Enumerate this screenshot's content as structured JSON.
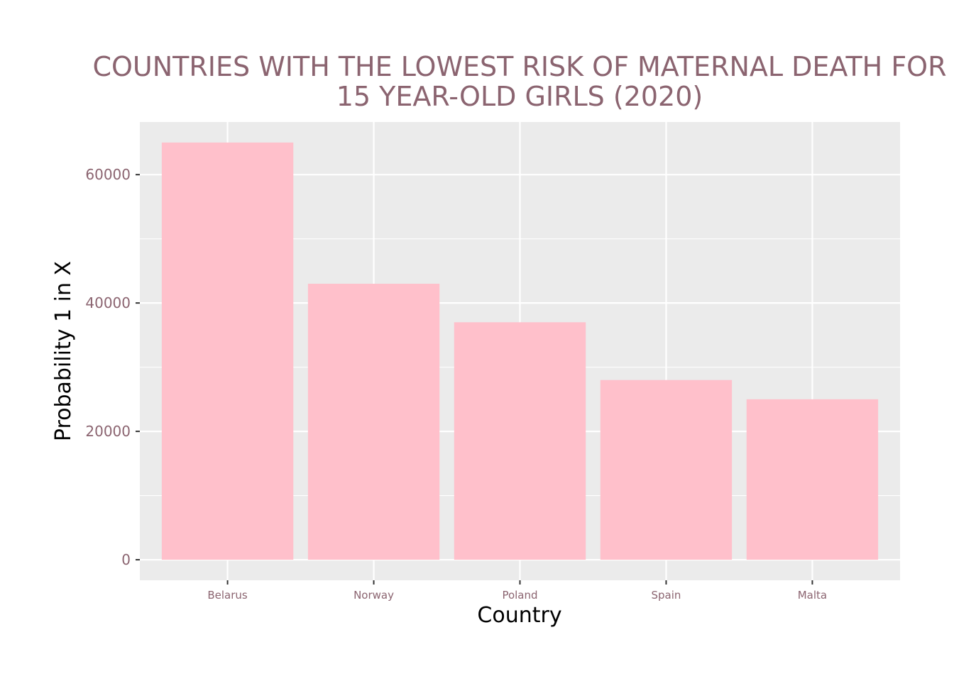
{
  "chart_data": {
    "type": "bar",
    "title_lines": [
      "COUNTRIES WITH THE LOWEST RISK OF MATERNAL DEATH  FOR",
      "15 YEAR-OLD GIRLS (2020)"
    ],
    "xlabel": "Country",
    "ylabel": "Probability 1 in X",
    "categories": [
      "Belarus",
      "Norway",
      "Poland",
      "Spain",
      "Malta"
    ],
    "values": [
      65000,
      43000,
      37000,
      28000,
      25000
    ],
    "yticks": [
      0,
      20000,
      40000,
      60000
    ],
    "ylim": [
      -3200,
      68200
    ],
    "grid": true,
    "colors": {
      "bar": "#ffc0cb",
      "panel": "#ebebeb",
      "grid": "#ffffff",
      "title": "#8b6470",
      "tick_label": "#8b6470"
    }
  }
}
